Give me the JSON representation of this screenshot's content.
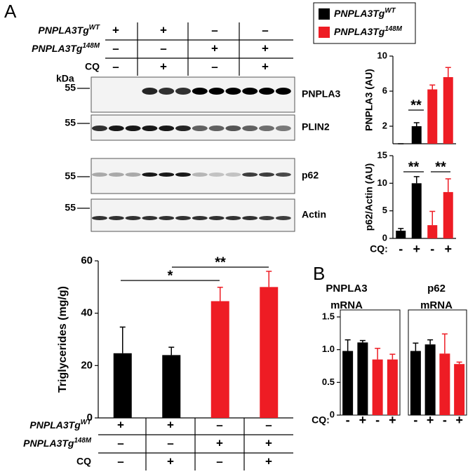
{
  "panels": [
    "A",
    "B"
  ],
  "legend": [
    {
      "name": "PNPLA3Tg",
      "sup": "WT",
      "color": "#000000"
    },
    {
      "name": "PNPLA3Tg",
      "sup": "148M",
      "color": "#ee1c24"
    }
  ],
  "conditions_top": {
    "rows": [
      {
        "label": "PNPLA3Tg",
        "sup": "WT",
        "cells": [
          "+",
          "+",
          "–",
          "–"
        ]
      },
      {
        "label": "PNPLA3Tg",
        "sup": "148M",
        "cells": [
          "–",
          "–",
          "+",
          "+"
        ]
      },
      {
        "label": "CQ",
        "cells": [
          "–",
          "+",
          "–",
          "+"
        ]
      }
    ]
  },
  "kda": "kDa",
  "blots": [
    {
      "label": "PNPLA3",
      "marker": "55"
    },
    {
      "label": "PLIN2",
      "marker": "55"
    },
    {
      "label": "p62",
      "marker": "55"
    },
    {
      "label": "Actin",
      "marker": "55"
    }
  ],
  "conditions_bottom": {
    "rows": [
      {
        "label": "PNPLA3Tg",
        "sup": "WT",
        "cells": [
          "+",
          "+",
          "–",
          "–"
        ]
      },
      {
        "label": "PNPLA3Tg",
        "sup": "148M",
        "cells": [
          "–",
          "–",
          "+",
          "+"
        ]
      },
      {
        "label": "CQ",
        "cells": [
          "–",
          "+",
          "–",
          "+"
        ]
      }
    ]
  },
  "cq_label": "CQ:",
  "chart_data": [
    {
      "type": "bar",
      "ylabel": "PNPLA3 (AU)",
      "values": [
        0,
        2.0,
        6.2,
        7.6
      ],
      "errors": [
        0,
        0.4,
        0.5,
        1.1
      ],
      "colors": [
        "#000000",
        "#000000",
        "#ee1c24",
        "#ee1c24"
      ],
      "ylim": [
        0,
        10
      ],
      "yticks": [
        2,
        6,
        10
      ],
      "annotations": [
        "**"
      ]
    },
    {
      "type": "bar",
      "ylabel": "p62/Actin (AU)",
      "categories": [
        "-",
        "+",
        "-",
        "+"
      ],
      "values": [
        1.4,
        10.0,
        2.4,
        8.4
      ],
      "errors": [
        0.4,
        1.2,
        2.5,
        2.4
      ],
      "colors": [
        "#000000",
        "#000000",
        "#ee1c24",
        "#ee1c24"
      ],
      "ylim": [
        0,
        15
      ],
      "yticks": [
        0,
        5,
        10,
        15
      ],
      "annotations": [
        "**",
        "**"
      ]
    },
    {
      "type": "bar",
      "ylabel": "Triglycerides (mg/g)",
      "values": [
        24.7,
        24.0,
        44.6,
        50.0
      ],
      "errors": [
        10.0,
        3.0,
        5.3,
        6.0
      ],
      "colors": [
        "#000000",
        "#000000",
        "#ee1c24",
        "#ee1c24"
      ],
      "ylim": [
        0,
        60
      ],
      "yticks": [
        0,
        20,
        40,
        60
      ],
      "annotations": [
        "*",
        "**"
      ]
    },
    {
      "type": "bar",
      "title": [
        "PNPLA3",
        "mRNA"
      ],
      "categories": [
        "-",
        "+",
        "-",
        "+"
      ],
      "values": [
        0.98,
        1.11,
        0.85,
        0.85
      ],
      "errors": [
        0.17,
        0.03,
        0.17,
        0.08
      ],
      "colors": [
        "#000000",
        "#000000",
        "#ee1c24",
        "#ee1c24"
      ],
      "ylim": [
        0,
        1.5
      ],
      "yticks": [
        0,
        0.5,
        {
          "value": 1.0,
          "label": "1.0"
        },
        1.5
      ]
    },
    {
      "type": "bar",
      "title": [
        "p62",
        "mRNA"
      ],
      "categories": [
        "-",
        "+",
        "-",
        "+"
      ],
      "values": [
        0.98,
        1.08,
        0.94,
        0.78
      ],
      "errors": [
        0.12,
        0.07,
        0.3,
        0.03
      ],
      "colors": [
        "#000000",
        "#000000",
        "#ee1c24",
        "#ee1c24"
      ],
      "ylim": [
        0,
        1.5
      ]
    }
  ]
}
